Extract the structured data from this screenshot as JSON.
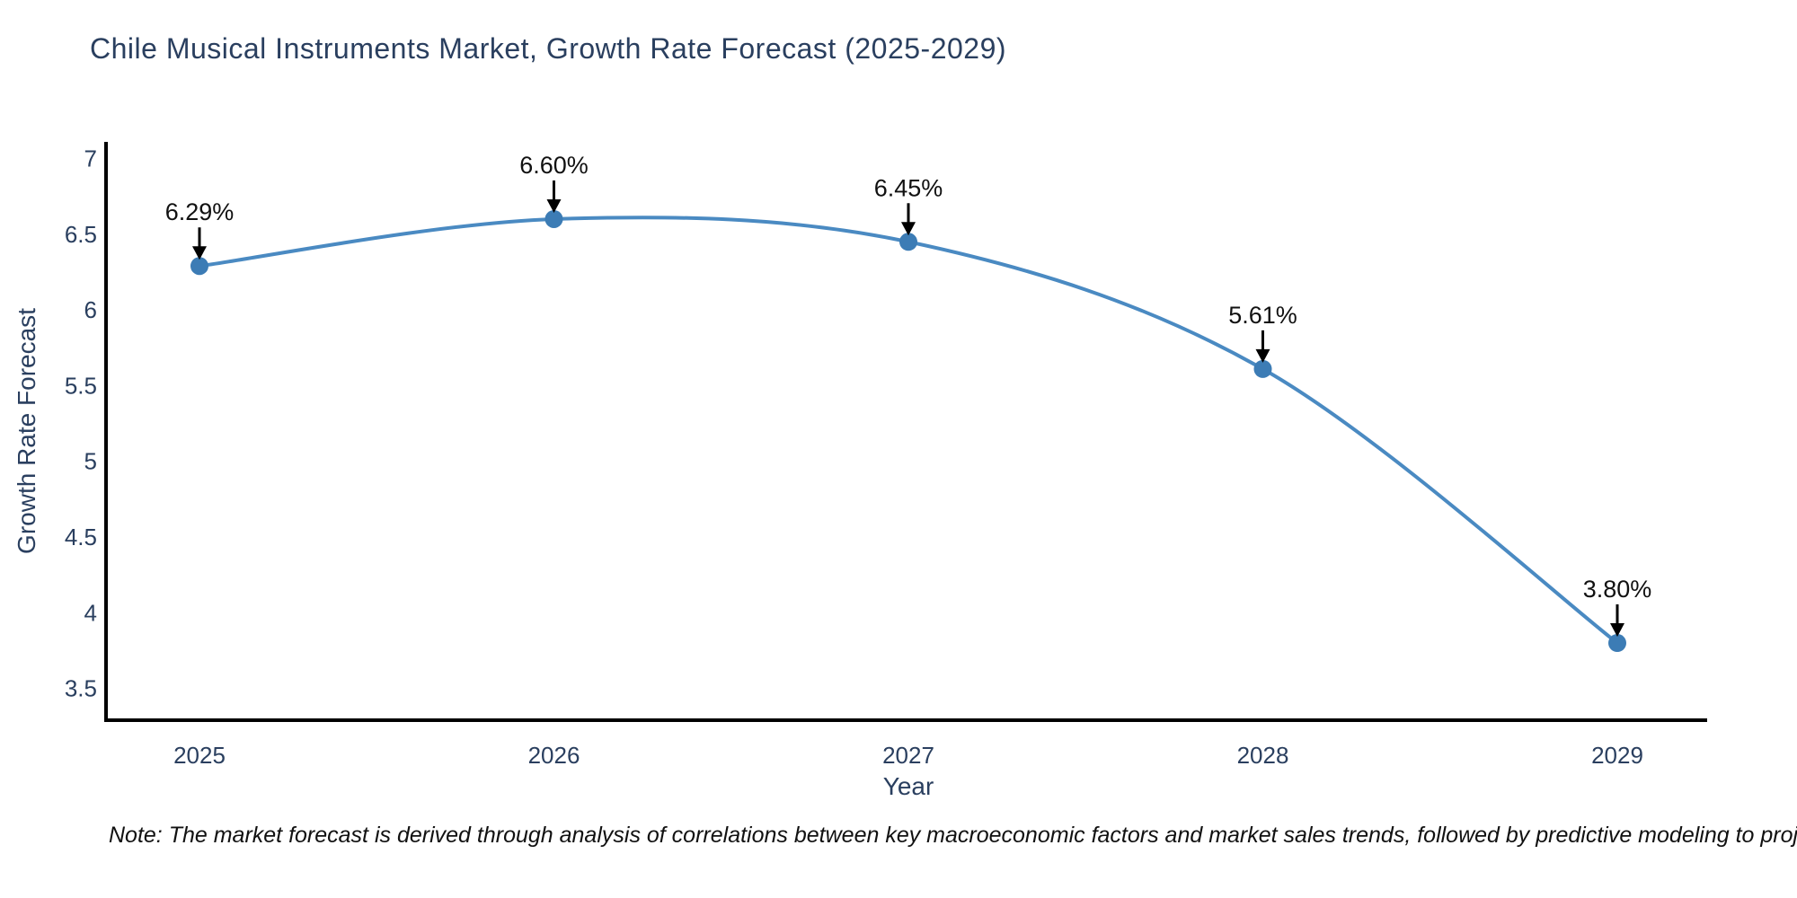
{
  "title": "Chile Musical Instruments Market, Growth Rate Forecast (2025-2029)",
  "note": "Note: The market forecast is derived through analysis of correlations between key macroeconomic factors and market sales trends, followed by predictive modeling to project future sales.",
  "colors": {
    "font": "#2a3f5f",
    "line": "#4a8ac2",
    "marker": "#3c7cb5",
    "axis": "#000000",
    "annotation_text": "#111111",
    "arrow": "#000000",
    "background": "#ffffff"
  },
  "chart_data": {
    "type": "line",
    "title": "Chile Musical Instruments Market, Growth Rate Forecast (2025-2029)",
    "xlabel": "Year",
    "ylabel": "Growth Rate Forecast",
    "x": [
      2025,
      2026,
      2027,
      2028,
      2029
    ],
    "values": [
      6.29,
      6.6,
      6.45,
      5.61,
      3.8
    ],
    "labels": [
      "6.29%",
      "6.60%",
      "6.45%",
      "5.61%",
      "3.80%"
    ],
    "yticks": [
      7,
      6.5,
      6,
      5.5,
      5,
      4.5,
      4,
      3.5
    ],
    "ylim": [
      3.29,
      7.11
    ],
    "line_shape": "spline",
    "grid": false,
    "legend": "none",
    "markers": true,
    "annotations": "value labels with down arrows above each point"
  }
}
